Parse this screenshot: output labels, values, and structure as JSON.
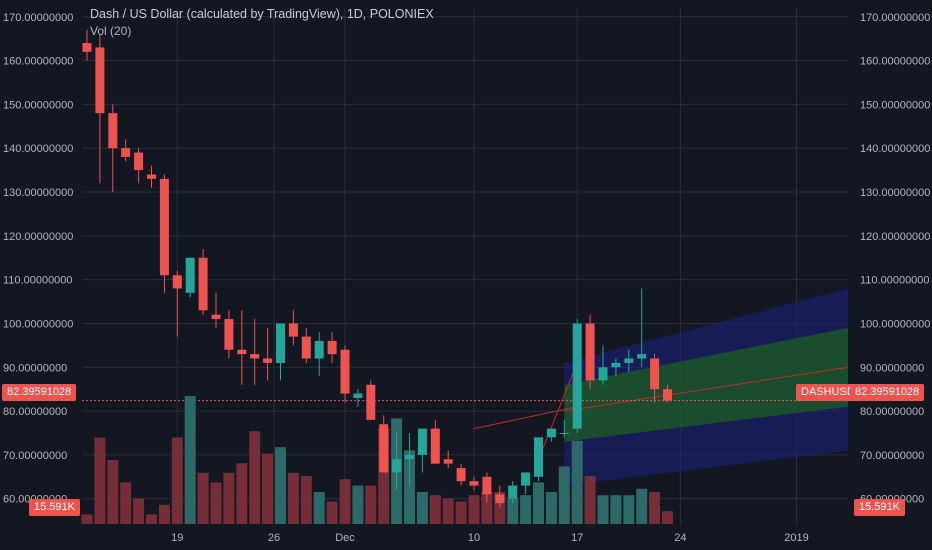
{
  "header": {
    "title": "Dash / US Dollar (calculated by TradingView), 1D, POLONIEX",
    "indicator": "Vol (20)"
  },
  "symbol_tag": "DASHUSD",
  "current_price": "82.39591028",
  "volume_tag": "15.591K",
  "colors": {
    "background": "#131722",
    "grid": "#2a2e39",
    "up": "#26a69a",
    "down": "#ef5350",
    "vol_up": "#2e6e6a",
    "vol_down": "#7a2f3a",
    "channel_blue": "#1a237e",
    "channel_green": "#1b5e20",
    "price_line": "#ef5350"
  },
  "chart_data": {
    "type": "candlestick",
    "title": "Dash / US Dollar (calculated by TradingView), 1D, POLONIEX",
    "y_axis_ticks": [
      "170.00000000",
      "160.00000000",
      "150.00000000",
      "140.00000000",
      "130.00000000",
      "120.00000000",
      "110.00000000",
      "100.00000000",
      "90.00000000",
      "80.00000000",
      "70.00000000",
      "60.00000000"
    ],
    "x_axis_ticks": [
      "19",
      "26",
      "Dec",
      "10",
      "17",
      "24",
      "2019"
    ],
    "ylim": [
      54,
      172
    ],
    "candles": [
      {
        "o": 164,
        "h": 167,
        "l": 160,
        "c": 162,
        "v": 3
      },
      {
        "o": 163,
        "h": 166,
        "l": 132,
        "c": 148,
        "v": 27
      },
      {
        "o": 148,
        "h": 150,
        "l": 130,
        "c": 140,
        "v": 20
      },
      {
        "o": 140,
        "h": 142,
        "l": 137,
        "c": 138,
        "v": 13
      },
      {
        "o": 139,
        "h": 140,
        "l": 132,
        "c": 135,
        "v": 8
      },
      {
        "o": 134,
        "h": 136,
        "l": 131,
        "c": 133,
        "v": 3
      },
      {
        "o": 133,
        "h": 134,
        "l": 107,
        "c": 111,
        "v": 6
      },
      {
        "o": 111,
        "h": 112,
        "l": 97,
        "c": 108,
        "v": 27
      },
      {
        "o": 107,
        "h": 115,
        "l": 106,
        "c": 115,
        "v": 40
      },
      {
        "o": 115,
        "h": 117,
        "l": 102,
        "c": 103,
        "v": 16
      },
      {
        "o": 102,
        "h": 107,
        "l": 99,
        "c": 101,
        "v": 13
      },
      {
        "o": 101,
        "h": 103,
        "l": 92,
        "c": 94,
        "v": 16
      },
      {
        "o": 94,
        "h": 103,
        "l": 86,
        "c": 93,
        "v": 19
      },
      {
        "o": 93,
        "h": 101,
        "l": 86,
        "c": 92,
        "v": 29
      },
      {
        "o": 92,
        "h": 99,
        "l": 87,
        "c": 91,
        "v": 22
      },
      {
        "o": 91,
        "h": 100,
        "l": 87,
        "c": 100,
        "v": 24
      },
      {
        "o": 100,
        "h": 103,
        "l": 95,
        "c": 97,
        "v": 16
      },
      {
        "o": 97,
        "h": 99,
        "l": 91,
        "c": 92,
        "v": 15
      },
      {
        "o": 92,
        "h": 98,
        "l": 88,
        "c": 96,
        "v": 10
      },
      {
        "o": 96,
        "h": 98,
        "l": 91,
        "c": 93,
        "v": 7
      },
      {
        "o": 94,
        "h": 95,
        "l": 82,
        "c": 84,
        "v": 14
      },
      {
        "o": 83,
        "h": 85,
        "l": 81,
        "c": 84,
        "v": 12
      },
      {
        "o": 86,
        "h": 87,
        "l": 78,
        "c": 78,
        "v": 12
      },
      {
        "o": 77,
        "h": 79,
        "l": 66,
        "c": 66,
        "v": 30
      },
      {
        "o": 66,
        "h": 75,
        "l": 62,
        "c": 69,
        "v": 33
      },
      {
        "o": 69,
        "h": 75,
        "l": 63,
        "c": 70,
        "v": 23
      },
      {
        "o": 70,
        "h": 76,
        "l": 66,
        "c": 76,
        "v": 10
      },
      {
        "o": 76,
        "h": 78,
        "l": 68,
        "c": 68,
        "v": 9
      },
      {
        "o": 69,
        "h": 71,
        "l": 67,
        "c": 68,
        "v": 8
      },
      {
        "o": 67,
        "h": 68,
        "l": 63,
        "c": 64,
        "v": 7
      },
      {
        "o": 64,
        "h": 65,
        "l": 62,
        "c": 63,
        "v": 9
      },
      {
        "o": 65,
        "h": 66,
        "l": 59,
        "c": 61,
        "v": 10
      },
      {
        "o": 61,
        "h": 63,
        "l": 58,
        "c": 59,
        "v": 10
      },
      {
        "o": 60,
        "h": 64,
        "l": 59,
        "c": 63,
        "v": 8
      },
      {
        "o": 63,
        "h": 66,
        "l": 61,
        "c": 66,
        "v": 9
      },
      {
        "o": 65,
        "h": 74,
        "l": 64,
        "c": 74,
        "v": 13
      },
      {
        "o": 74,
        "h": 76,
        "l": 73,
        "c": 76,
        "v": 10
      },
      {
        "o": 75,
        "h": 78,
        "l": 74,
        "c": 75,
        "v": 18
      },
      {
        "o": 76,
        "h": 101,
        "l": 75,
        "c": 100,
        "v": 26
      },
      {
        "o": 100,
        "h": 102,
        "l": 85,
        "c": 87,
        "v": 15
      },
      {
        "o": 87,
        "h": 95,
        "l": 86,
        "c": 90,
        "v": 9
      },
      {
        "o": 90,
        "h": 92,
        "l": 88,
        "c": 91,
        "v": 9
      },
      {
        "o": 91,
        "h": 94,
        "l": 89,
        "c": 92,
        "v": 9
      },
      {
        "o": 92,
        "h": 108,
        "l": 90,
        "c": 93,
        "v": 11
      },
      {
        "o": 92,
        "h": 93,
        "l": 82,
        "c": 85,
        "v": 10
      },
      {
        "o": 85,
        "h": 86,
        "l": 82,
        "c": 82.4,
        "v": 4
      }
    ]
  }
}
